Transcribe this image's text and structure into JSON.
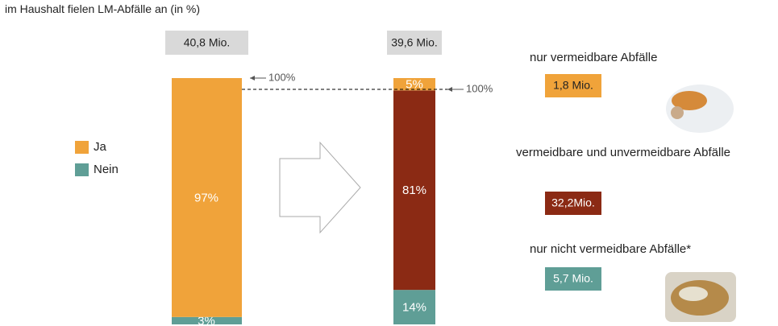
{
  "chart_data": {
    "type": "stacked_bar",
    "title": "im Haushalt fielen LM-Abfälle an (in %)",
    "categories": [
      "40,8 Mio.",
      "39,6 Mio."
    ],
    "annotations": [
      "100%",
      "100%"
    ],
    "ylim": [
      0,
      100
    ],
    "series": [
      {
        "name": "Nein",
        "color": "#5f9e96",
        "values": [
          3,
          null
        ],
        "value_labels": [
          "3%",
          null
        ]
      },
      {
        "name": "Ja",
        "color": "#f0a33a",
        "values": [
          97,
          null
        ],
        "value_labels": [
          "97%",
          null
        ]
      },
      {
        "name": "nur nicht vermeidbare Abfälle*",
        "color": "#5f9e96",
        "values": [
          null,
          14
        ],
        "value_labels": [
          null,
          "14%"
        ],
        "amount": "5,7 Mio."
      },
      {
        "name": "vermeidbare und unvermeidbare Abfälle",
        "color": "#8b2a14",
        "values": [
          null,
          81
        ],
        "value_labels": [
          null,
          "81%"
        ],
        "amount": "32,2Mio."
      },
      {
        "name": "nur vermeidbare Abfälle",
        "color": "#f0a33a",
        "values": [
          null,
          5
        ],
        "value_labels": [
          null,
          "5%"
        ],
        "amount": "1,8 Mio."
      }
    ]
  }
}
